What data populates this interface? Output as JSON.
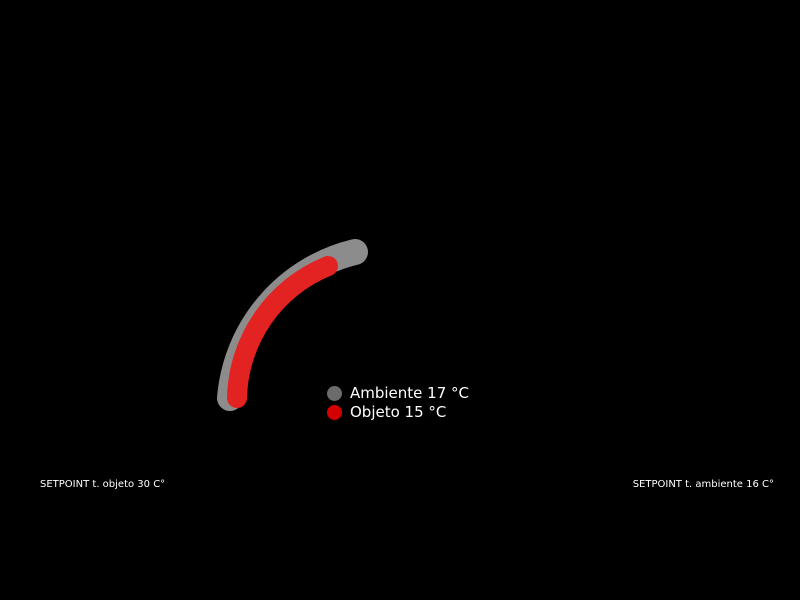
{
  "gauge": {
    "ambient": {
      "label": "Ambiente 17 °C",
      "value": 17,
      "color": "#8c8c8c",
      "dot_color": "#6b6b6b"
    },
    "object": {
      "label": "Objeto 15 °C",
      "value": 15,
      "color": "#e32222",
      "dot_color": "#d40000"
    }
  },
  "setpoints": {
    "object_label": "SETPOINT t. objeto 30 C°",
    "ambient_label": "SETPOINT t. ambiente 16 C°"
  }
}
